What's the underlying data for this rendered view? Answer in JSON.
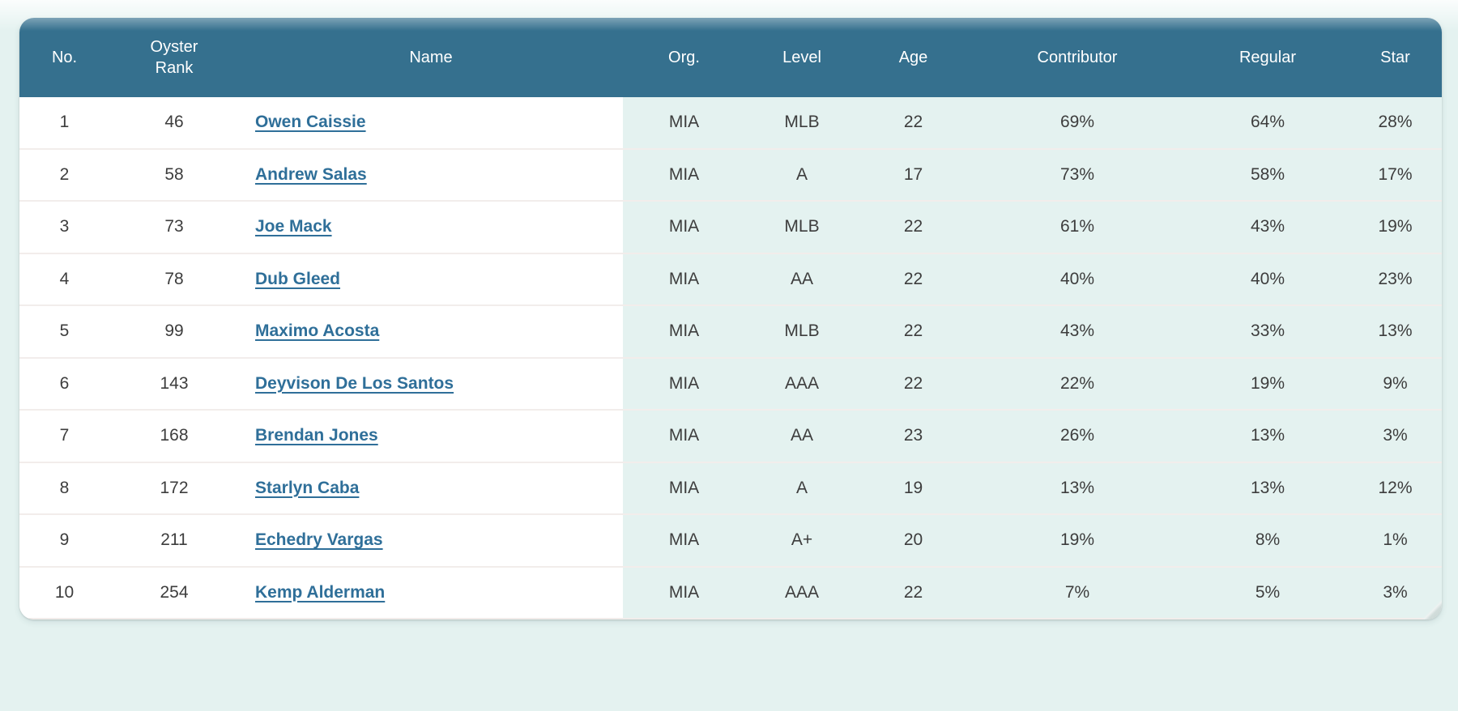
{
  "colors": {
    "header_bg": "#35708E",
    "header_text": "#FFFFFF",
    "cell_teal": "#E4F2F0",
    "page_bg": "#E4F2F0",
    "text": "#3D3D3D",
    "link": "#2F6F99",
    "divider": "#F2EDEB"
  },
  "table": {
    "columns": [
      {
        "key": "no",
        "label": "No."
      },
      {
        "key": "rank",
        "label": "Oyster\nRank"
      },
      {
        "key": "name",
        "label": "Name"
      },
      {
        "key": "org",
        "label": "Org."
      },
      {
        "key": "level",
        "label": "Level"
      },
      {
        "key": "age",
        "label": "Age"
      },
      {
        "key": "contributor",
        "label": "Contributor"
      },
      {
        "key": "regular",
        "label": "Regular"
      },
      {
        "key": "star",
        "label": "Star"
      }
    ],
    "rows": [
      {
        "no": "1",
        "rank": "46",
        "name": "Owen Caissie",
        "org": "MIA",
        "level": "MLB",
        "age": "22",
        "contributor": "69%",
        "regular": "64%",
        "star": "28%"
      },
      {
        "no": "2",
        "rank": "58",
        "name": "Andrew Salas",
        "org": "MIA",
        "level": "A",
        "age": "17",
        "contributor": "73%",
        "regular": "58%",
        "star": "17%"
      },
      {
        "no": "3",
        "rank": "73",
        "name": "Joe Mack",
        "org": "MIA",
        "level": "MLB",
        "age": "22",
        "contributor": "61%",
        "regular": "43%",
        "star": "19%"
      },
      {
        "no": "4",
        "rank": "78",
        "name": "Dub Gleed",
        "org": "MIA",
        "level": "AA",
        "age": "22",
        "contributor": "40%",
        "regular": "40%",
        "star": "23%"
      },
      {
        "no": "5",
        "rank": "99",
        "name": "Maximo Acosta",
        "org": "MIA",
        "level": "MLB",
        "age": "22",
        "contributor": "43%",
        "regular": "33%",
        "star": "13%"
      },
      {
        "no": "6",
        "rank": "143",
        "name": "Deyvison De Los Santos",
        "org": "MIA",
        "level": "AAA",
        "age": "22",
        "contributor": "22%",
        "regular": "19%",
        "star": "9%"
      },
      {
        "no": "7",
        "rank": "168",
        "name": "Brendan Jones",
        "org": "MIA",
        "level": "AA",
        "age": "23",
        "contributor": "26%",
        "regular": "13%",
        "star": "3%"
      },
      {
        "no": "8",
        "rank": "172",
        "name": "Starlyn Caba",
        "org": "MIA",
        "level": "A",
        "age": "19",
        "contributor": "13%",
        "regular": "13%",
        "star": "12%"
      },
      {
        "no": "9",
        "rank": "211",
        "name": "Echedry Vargas",
        "org": "MIA",
        "level": "A+",
        "age": "20",
        "contributor": "19%",
        "regular": "8%",
        "star": "1%"
      },
      {
        "no": "10",
        "rank": "254",
        "name": "Kemp Alderman",
        "org": "MIA",
        "level": "AAA",
        "age": "22",
        "contributor": "7%",
        "regular": "5%",
        "star": "3%"
      }
    ]
  }
}
